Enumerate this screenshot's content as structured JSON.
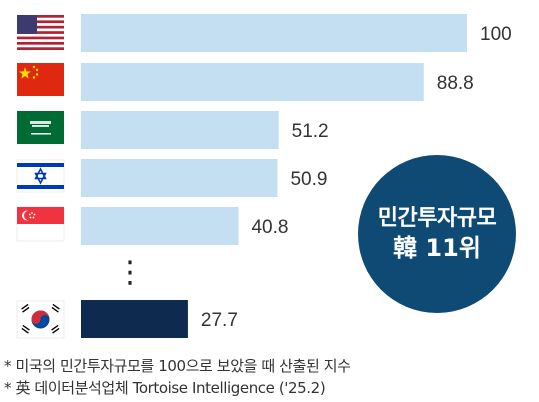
{
  "chart_data": {
    "type": "bar",
    "orientation": "horizontal",
    "categories": [
      "United States",
      "China",
      "Saudi Arabia",
      "Israel",
      "Singapore",
      "South Korea"
    ],
    "values": [
      100,
      88.8,
      51.2,
      50.9,
      40.8,
      27.7
    ],
    "value_labels": [
      "100",
      "88.8",
      "51.2",
      "50.9",
      "40.8",
      "27.7"
    ],
    "highlight": "South Korea",
    "ellipsis": "⋮",
    "xlim": [
      0,
      100
    ],
    "colors": {
      "bar": "#c5dff2",
      "highlight": "#0e2a4f"
    }
  },
  "badge": {
    "line1": "민간투자규모",
    "line2": "韓 11위"
  },
  "notes": [
    "* 미국의 민간투자규모를 100으로 보았을 때 산출된 지수",
    "* 英 데이터분석업체 Tortoise Intelligence ('25.2)"
  ],
  "flags": [
    "us-flag-icon",
    "china-flag-icon",
    "saudi-flag-icon",
    "israel-flag-icon",
    "singapore-flag-icon",
    "korea-flag-icon"
  ]
}
